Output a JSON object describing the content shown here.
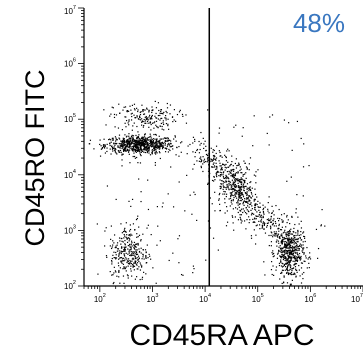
{
  "chart_data": {
    "type": "scatter",
    "title": "",
    "xlabel": "CD45RA APC",
    "ylabel": "CD45RO FITC",
    "x_scale": "log",
    "y_scale": "log",
    "xlim": [
      50,
      10000000
    ],
    "ylim": [
      100,
      10000000
    ],
    "x_ticks": [
      {
        "value": 100,
        "base": "10",
        "exp": "2"
      },
      {
        "value": 1000,
        "base": "10",
        "exp": "3"
      },
      {
        "value": 10000,
        "base": "10",
        "exp": "4"
      },
      {
        "value": 100000,
        "base": "10",
        "exp": "5"
      },
      {
        "value": 1000000,
        "base": "10",
        "exp": "6"
      },
      {
        "value": 10000000,
        "base": "10",
        "exp": "7"
      }
    ],
    "y_ticks": [
      {
        "value": 100,
        "base": "10",
        "exp": "2"
      },
      {
        "value": 1000,
        "base": "10",
        "exp": "3"
      },
      {
        "value": 10000,
        "base": "10",
        "exp": "4"
      },
      {
        "value": 100000,
        "base": "10",
        "exp": "5"
      },
      {
        "value": 1000000,
        "base": "10",
        "exp": "6"
      },
      {
        "value": 10000000,
        "base": "10",
        "exp": "7"
      }
    ],
    "quadrant_gate_x": 12000,
    "quadrant_label": "48%",
    "quadrant_label_color": "#3a77c0",
    "point_color": "#000000",
    "grid": false,
    "populations": [
      {
        "center_log_x": 2.75,
        "center_log_y": 4.55,
        "spread_log_x": 0.55,
        "spread_log_y": 0.08,
        "events": 700
      },
      {
        "center_log_x": 2.85,
        "center_log_y": 5.05,
        "spread_log_x": 0.5,
        "spread_log_y": 0.12,
        "events": 180
      },
      {
        "center_log_x": 4.6,
        "center_log_y": 3.8,
        "spread_log_x": 0.25,
        "spread_log_y": 0.25,
        "events": 220
      },
      {
        "center_log_x": 5.6,
        "center_log_y": 2.6,
        "spread_log_x": 0.22,
        "spread_log_y": 0.25,
        "events": 450
      },
      {
        "center_log_x": 2.55,
        "center_log_y": 2.6,
        "spread_log_x": 0.3,
        "spread_log_y": 0.25,
        "events": 300
      }
    ]
  }
}
